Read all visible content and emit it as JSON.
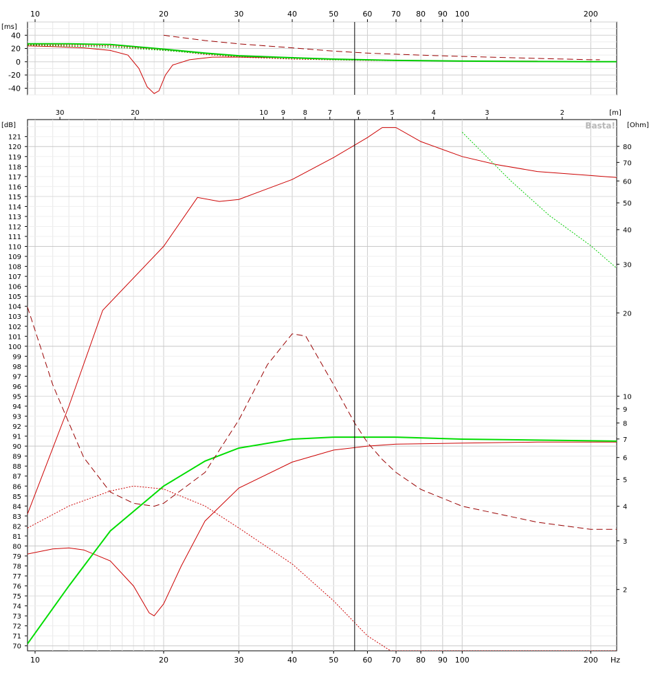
{
  "chart_data": [
    {
      "type": "line",
      "panel": "group-delay",
      "ylabel": "[ms]",
      "xscale": "log",
      "xlim": [
        9.6,
        230
      ],
      "ylim": [
        -50,
        60
      ],
      "grid": true,
      "x_ticks": [
        10,
        20,
        30,
        40,
        50,
        60,
        70,
        80,
        90,
        100,
        200
      ],
      "y_ticks": [
        40,
        20,
        0,
        -20,
        -40
      ],
      "cursor_x": 56,
      "series": [
        {
          "style": "solid-red",
          "color": "#cc0000",
          "points": [
            [
              9.6,
              24
            ],
            [
              11,
              23
            ],
            [
              13,
              21
            ],
            [
              15,
              17
            ],
            [
              16.5,
              10
            ],
            [
              17.5,
              -10
            ],
            [
              18.3,
              -38
            ],
            [
              19,
              -48
            ],
            [
              19.5,
              -44
            ],
            [
              20.2,
              -20
            ],
            [
              21,
              -5
            ],
            [
              23,
              3
            ],
            [
              26,
              7
            ],
            [
              30,
              7
            ],
            [
              40,
              6
            ],
            [
              50,
              4
            ],
            [
              60,
              3
            ],
            [
              70,
              2
            ],
            [
              100,
              1
            ],
            [
              150,
              1
            ]
          ]
        },
        {
          "style": "dashed-darkred",
          "color": "#990000",
          "points": [
            [
              20,
              40
            ],
            [
              25,
              32
            ],
            [
              30,
              27
            ],
            [
              40,
              21
            ],
            [
              50,
              16
            ],
            [
              60,
              13
            ],
            [
              80,
              10
            ],
            [
              100,
              8
            ],
            [
              150,
              5
            ],
            [
              200,
              3
            ],
            [
              210,
              3
            ]
          ]
        },
        {
          "style": "dotted-red",
          "color": "#cc0000",
          "points": [
            [
              9.6,
              26
            ],
            [
              12,
              25
            ],
            [
              15,
              24
            ],
            [
              20,
              18
            ],
            [
              25,
              11
            ],
            [
              30,
              7
            ],
            [
              40,
              4
            ],
            [
              60,
              2
            ],
            [
              100,
              1
            ],
            [
              200,
              0
            ],
            [
              230,
              0
            ]
          ]
        },
        {
          "style": "solid-green",
          "color": "#00cc00",
          "points": [
            [
              9.6,
              27
            ],
            [
              12,
              27
            ],
            [
              15,
              26
            ],
            [
              20,
              19
            ],
            [
              25,
              13
            ],
            [
              30,
              9
            ],
            [
              40,
              6
            ],
            [
              50,
              4
            ],
            [
              70,
              2
            ],
            [
              100,
              1
            ],
            [
              200,
              0
            ],
            [
              230,
              0
            ]
          ]
        },
        {
          "style": "dotted-green",
          "color": "#00cc00",
          "points": [
            [
              9.6,
              25
            ],
            [
              15,
              22
            ],
            [
              20,
              17
            ],
            [
              30,
              8
            ],
            [
              50,
              3
            ],
            [
              100,
              1
            ],
            [
              230,
              0
            ]
          ]
        }
      ]
    },
    {
      "type": "line",
      "panel": "spl-impedance",
      "ylabel": "[dB]",
      "ylabel_right": "[Ohm]",
      "wavelength_unit": "[m]",
      "xunit": "Hz",
      "xscale": "log",
      "xlim": [
        9.6,
        230
      ],
      "ylim": [
        69.5,
        122.7
      ],
      "right_scale": "log",
      "right_lim": [
        1.2,
        100
      ],
      "grid": true,
      "x_ticks": [
        10,
        20,
        30,
        40,
        50,
        60,
        70,
        80,
        90,
        100,
        200
      ],
      "y_ticks": [
        70,
        71,
        72,
        73,
        74,
        75,
        76,
        77,
        78,
        79,
        80,
        81,
        82,
        83,
        84,
        85,
        86,
        87,
        88,
        89,
        90,
        91,
        92,
        93,
        94,
        95,
        96,
        97,
        98,
        99,
        100,
        101,
        102,
        103,
        104,
        105,
        106,
        107,
        108,
        109,
        110,
        111,
        112,
        113,
        114,
        115,
        116,
        117,
        118,
        119,
        120,
        121
      ],
      "right_ticks": [
        2,
        3,
        4,
        5,
        6,
        7,
        8,
        9,
        10,
        20,
        30,
        40,
        50,
        60,
        70,
        80
      ],
      "wavelength_ticks": [
        30,
        20,
        10,
        9,
        8,
        7,
        6,
        5,
        4,
        3,
        2
      ],
      "cursor_x": 56,
      "watermark": "Basta!",
      "series": [
        {
          "style": "solid-red",
          "axis": "left",
          "color": "#cc0000",
          "points": [
            [
              9.6,
              83.2
            ],
            [
              12,
              94
            ],
            [
              14.4,
              103.6
            ],
            [
              20,
              110
            ],
            [
              24,
              114.9
            ],
            [
              27,
              114.5
            ],
            [
              30,
              114.7
            ],
            [
              40,
              116.7
            ],
            [
              50,
              118.9
            ],
            [
              60,
              120.9
            ],
            [
              65,
              121.9
            ],
            [
              70,
              121.9
            ],
            [
              80,
              120.5
            ],
            [
              100,
              119
            ],
            [
              120,
              118.2
            ],
            [
              150,
              117.5
            ],
            [
              200,
              117.1
            ],
            [
              230,
              116.9
            ]
          ]
        },
        {
          "style": "solid-red",
          "axis": "left",
          "color": "#cc0000",
          "points": [
            [
              9.6,
              79.2
            ],
            [
              11,
              79.7
            ],
            [
              12,
              79.8
            ],
            [
              13,
              79.6
            ],
            [
              15,
              78.5
            ],
            [
              17,
              76
            ],
            [
              18.5,
              73.3
            ],
            [
              19,
              73
            ],
            [
              20,
              74.2
            ],
            [
              22,
              78
            ],
            [
              25,
              82.5
            ],
            [
              30,
              85.8
            ],
            [
              40,
              88.4
            ],
            [
              50,
              89.6
            ],
            [
              60,
              90
            ],
            [
              70,
              90.2
            ],
            [
              100,
              90.3
            ],
            [
              150,
              90.4
            ],
            [
              230,
              90.4
            ]
          ]
        },
        {
          "style": "solid-green",
          "axis": "left",
          "color": "#00dd00",
          "points": [
            [
              9.6,
              70.2
            ],
            [
              12,
              76
            ],
            [
              15,
              81.5
            ],
            [
              20,
              86
            ],
            [
              25,
              88.5
            ],
            [
              30,
              89.8
            ],
            [
              40,
              90.7
            ],
            [
              50,
              90.9
            ],
            [
              60,
              90.9
            ],
            [
              70,
              90.9
            ],
            [
              100,
              90.7
            ],
            [
              150,
              90.6
            ],
            [
              230,
              90.5
            ]
          ]
        },
        {
          "style": "dotted-red",
          "axis": "left",
          "color": "#cc0000",
          "points": [
            [
              9.6,
              81.8
            ],
            [
              12,
              84
            ],
            [
              15,
              85.5
            ],
            [
              17,
              86
            ],
            [
              20,
              85.7
            ],
            [
              25,
              84
            ],
            [
              30,
              81.8
            ],
            [
              40,
              78.2
            ],
            [
              50,
              74.5
            ],
            [
              60,
              71
            ],
            [
              68,
              69.5
            ],
            [
              230,
              69.5
            ]
          ]
        },
        {
          "style": "dashed-darkred",
          "axis": "right",
          "color": "#990000",
          "points": [
            [
              9.6,
              21
            ],
            [
              11,
              11
            ],
            [
              12,
              8
            ],
            [
              13,
              6
            ],
            [
              15,
              4.5
            ],
            [
              17,
              4.1
            ],
            [
              19,
              4.0
            ],
            [
              20,
              4.1
            ],
            [
              25,
              5.3
            ],
            [
              30,
              8.2
            ],
            [
              35,
              13
            ],
            [
              40,
              16.8
            ],
            [
              43,
              16.5
            ],
            [
              50,
              11
            ],
            [
              56,
              8
            ],
            [
              60,
              6.8
            ],
            [
              65,
              5.9
            ],
            [
              70,
              5.3
            ],
            [
              80,
              4.6
            ],
            [
              100,
              4.0
            ],
            [
              150,
              3.5
            ],
            [
              200,
              3.3
            ],
            [
              230,
              3.3
            ]
          ]
        },
        {
          "style": "dotted-green",
          "axis": "right",
          "color": "#00cc00",
          "points": [
            [
              100,
              90
            ],
            [
              130,
              60
            ],
            [
              160,
              45
            ],
            [
              200,
              35
            ],
            [
              230,
              29
            ]
          ]
        }
      ]
    }
  ]
}
